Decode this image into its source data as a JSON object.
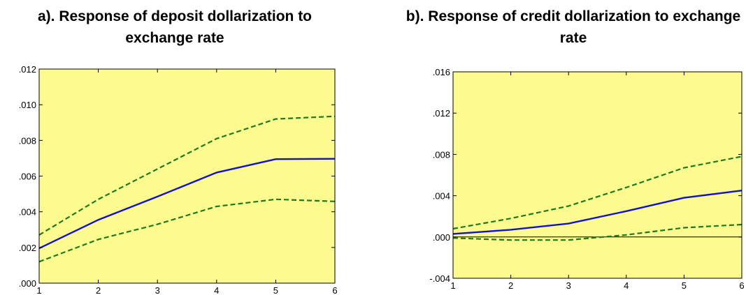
{
  "chart_data": [
    {
      "type": "line",
      "title": "a). Response of deposit dollarization to exchange rate",
      "xlabel": "",
      "ylabel": "",
      "x": [
        1,
        2,
        3,
        4,
        5,
        6
      ],
      "x_tick_labels": [
        "1",
        "2",
        "3",
        "4",
        "5",
        "6"
      ],
      "ylim": [
        0.0,
        0.012
      ],
      "y_ticks": [
        0.0,
        0.002,
        0.004,
        0.006,
        0.008,
        0.01,
        0.012
      ],
      "y_tick_labels": [
        ".000",
        ".002",
        ".004",
        ".006",
        ".008",
        ".010",
        ".012"
      ],
      "plot_background": "#fdfb8f",
      "zero_line": false,
      "series": [
        {
          "role": "response",
          "style": "solid",
          "color": "#1010d8",
          "values": [
            0.00195,
            0.00355,
            0.00485,
            0.0062,
            0.00695,
            0.00697
          ]
        },
        {
          "role": "upper-band",
          "style": "dashed",
          "color": "#1c7a1c",
          "values": [
            0.0027,
            0.0047,
            0.0064,
            0.0081,
            0.0092,
            0.00935
          ]
        },
        {
          "role": "lower-band",
          "style": "dashed",
          "color": "#1c7a1c",
          "values": [
            0.0012,
            0.00245,
            0.0033,
            0.0043,
            0.0047,
            0.00458
          ]
        }
      ]
    },
    {
      "type": "line",
      "title": "b). Response of credit dollarization to exchange rate",
      "xlabel": "",
      "ylabel": "",
      "x": [
        1,
        2,
        3,
        4,
        5,
        6
      ],
      "x_tick_labels": [
        "1",
        "2",
        "3",
        "4",
        "5",
        "6"
      ],
      "ylim": [
        -0.004,
        0.016
      ],
      "y_ticks": [
        -0.004,
        0.0,
        0.004,
        0.008,
        0.012,
        0.016
      ],
      "y_tick_labels": [
        "-.004",
        ".000",
        ".004",
        ".008",
        ".012",
        ".016"
      ],
      "plot_background": "#fdfb8f",
      "zero_line": true,
      "series": [
        {
          "role": "response",
          "style": "solid",
          "color": "#1010d8",
          "values": [
            0.0003,
            0.0007,
            0.0013,
            0.0025,
            0.0038,
            0.0045
          ]
        },
        {
          "role": "upper-band",
          "style": "dashed",
          "color": "#1c7a1c",
          "values": [
            0.0008,
            0.0018,
            0.003,
            0.0048,
            0.0067,
            0.0078
          ]
        },
        {
          "role": "lower-band",
          "style": "dashed",
          "color": "#1c7a1c",
          "values": [
            -0.0001,
            -0.0003,
            -0.0003,
            0.0002,
            0.0009,
            0.0012
          ]
        }
      ]
    }
  ]
}
